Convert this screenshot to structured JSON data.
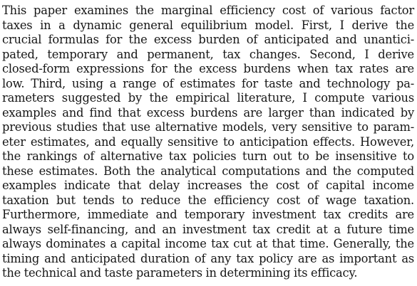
{
  "abstract": {
    "lines": [
      "This paper examines the marginal efficiency cost of various factor",
      "taxes in a dynamic general equilibrium model. First, I derive the",
      "crucial formulas for the excess burden of anticipated and unantici-",
      "pated, temporary and permanent, tax changes. Second, I derive",
      "closed-form expressions for the excess burdens when tax rates are",
      "low. Third, using a range of estimates for taste and technology pa-",
      "rameters suggested by the empirical literature, I compute various",
      "examples and find that excess burdens are larger than indicated by",
      "previous studies that use alternative models, very sensitive to param-",
      "eter estimates, and equally sensitive to anticipation effects. However,",
      "the rankings of alternative tax policies turn out to be insensitive to",
      "these estimates. Both the analytical computations and the computed",
      "examples indicate that delay increases the cost of capital income",
      "taxation but tends to reduce the efficiency cost of wage taxation.",
      "Furthermore, immediate and temporary investment tax credits are",
      "always self-financing, and an investment tax credit at a future time",
      "always dominates a capital income tax cut at that time. Generally, the",
      "timing and anticipated duration of any tax policy are as important as",
      "the technical and taste parameters in determining its efficacy."
    ]
  }
}
